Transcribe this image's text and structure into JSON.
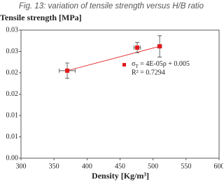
{
  "chart_data": {
    "type": "scatter",
    "caption": "Fig. 13: variation of tensile strength versus H/B ratio",
    "y_label": "Tensile strength [MPa]",
    "x_label": "Density [Kg/m³]",
    "xlim": [
      300,
      600
    ],
    "xticks": [
      300,
      350,
      400,
      450,
      500,
      550,
      600
    ],
    "ylim": [
      0,
      0.03
    ],
    "yticks": [
      {
        "value": 0,
        "label": "0.00"
      },
      {
        "value": 0.005,
        "label": "0.01"
      },
      {
        "value": 0.01,
        "label": "0.01"
      },
      {
        "value": 0.015,
        "label": "0.02"
      },
      {
        "value": 0.02,
        "label": "0.02"
      },
      {
        "value": 0.025,
        "label": "0.03"
      },
      {
        "value": 0.03,
        "label": "0.03"
      }
    ],
    "series": [
      {
        "color": "#e31a1c",
        "x": [
          370,
          476,
          510
        ],
        "values": [
          0.0205,
          0.0259,
          0.0262
        ],
        "yerr": [
          0.0018,
          0.0012,
          0.0025
        ],
        "xerr": [
          12,
          5,
          3
        ]
      }
    ],
    "trendline": {
      "color": "#e31a1c",
      "x": [
        370,
        510
      ],
      "values": [
        0.0205,
        0.0262
      ]
    },
    "equation": {
      "symbol": "σ",
      "subscript": "T",
      "rest": " = 4E-05ρ + 0.005",
      "r2": "R² = 0.7294"
    }
  }
}
